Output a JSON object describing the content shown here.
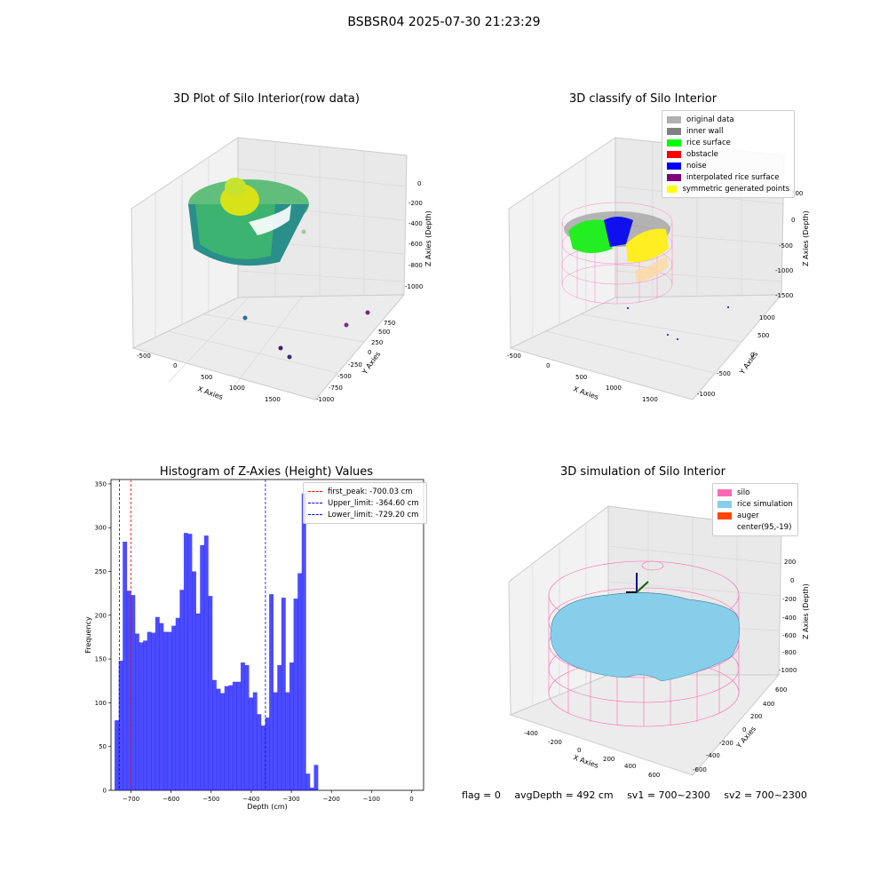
{
  "suptitle": "BSBSR04 2025-07-30 21:23:29",
  "panels": {
    "raw": {
      "title": "3D Plot of Silo Interior(row data)",
      "xlabel": "X Axies",
      "ylabel": "Y Axies",
      "zlabel": "Z Axies (Depth)",
      "xticks": [
        "-500",
        "0",
        "500",
        "1000",
        "1500"
      ],
      "yticks": [
        "750",
        "500",
        "250",
        "0",
        "-250",
        "-500",
        "-750",
        "-1000"
      ],
      "zticks": [
        "0",
        "-200",
        "-400",
        "-600",
        "-800",
        "-1000"
      ]
    },
    "classify": {
      "title": "3D classify of Silo Interior",
      "xlabel": "X Axies",
      "ylabel": "Y Axies",
      "zlabel": "Z Axies (Depth)",
      "xticks": [
        "-500",
        "0",
        "500",
        "1000",
        "1500"
      ],
      "yticks": [
        "1000",
        "500",
        "0",
        "-500",
        "-1000"
      ],
      "zticks": [
        "500",
        "0",
        "-500",
        "-1000",
        "-1500"
      ],
      "legend": [
        {
          "label": "original data",
          "color": "#b0b0b0"
        },
        {
          "label": "inner wall",
          "color": "#808080"
        },
        {
          "label": "rice surface",
          "color": "#00ff00"
        },
        {
          "label": "obstacle",
          "color": "#ff0000"
        },
        {
          "label": "noise",
          "color": "#0000ff"
        },
        {
          "label": "interpolated rice surface",
          "color": "#800080"
        },
        {
          "label": "symmetric generated points",
          "color": "#ffff00"
        }
      ]
    },
    "simulation": {
      "title": "3D simulation of Silo Interior",
      "xlabel": "X Axies",
      "ylabel": "Y Axies",
      "zlabel": "Z Axies (Depth)",
      "xticks": [
        "-400",
        "-200",
        "0",
        "200",
        "400",
        "600"
      ],
      "yticks": [
        "600",
        "400",
        "200",
        "0",
        "-200",
        "-400",
        "-600"
      ],
      "zticks": [
        "200",
        "0",
        "-200",
        "-400",
        "-600",
        "-800",
        "-1000"
      ],
      "legend": [
        {
          "label": "silo",
          "color": "#ff69b4"
        },
        {
          "label": "rice simulation",
          "color": "#87ceeb"
        },
        {
          "label": "auger",
          "color": "#ff4500"
        },
        {
          "label": "center(95,-19)",
          "color": ""
        }
      ]
    }
  },
  "status": {
    "flag": "flag = 0",
    "avg": "avgDepth = 492 cm",
    "sv1": "sv1 = 700~2300",
    "sv2": "sv2 = 700~2300"
  },
  "chart_data": [
    {
      "type": "bar",
      "title": "Histogram of Z-Axies (Height) Values",
      "xlabel": "Depth (cm)",
      "ylabel": "Frequency",
      "xlim": [
        -750,
        30
      ],
      "ylim": [
        0,
        355
      ],
      "xticks": [
        -700,
        -600,
        -500,
        -400,
        -300,
        -200,
        -100,
        0
      ],
      "yticks": [
        0,
        50,
        100,
        150,
        200,
        250,
        300,
        350
      ],
      "bin_edges_start": -741,
      "bin_width": 10.15,
      "values": [
        80,
        148,
        284,
        228,
        223,
        179,
        169,
        171,
        181,
        180,
        198,
        191,
        181,
        181,
        188,
        197,
        229,
        294,
        293,
        250,
        202,
        280,
        291,
        222,
        126,
        116,
        111,
        119,
        120,
        124,
        124,
        146,
        143,
        106,
        112,
        87,
        74,
        83,
        224,
        112,
        143,
        220,
        112,
        146,
        219,
        248,
        339,
        19,
        3,
        29
      ],
      "color": "#0000ff",
      "lines": [
        {
          "label": "first_peak: -700.03 cm",
          "x": -700.03,
          "color": "#ff0000"
        },
        {
          "label": "Upper_limit: -364.60 cm",
          "x": -364.6,
          "color": "#0000ff"
        },
        {
          "label": "Lower_limit: -729.20 cm",
          "x": -729.2,
          "color": "#0000ff"
        }
      ]
    }
  ]
}
